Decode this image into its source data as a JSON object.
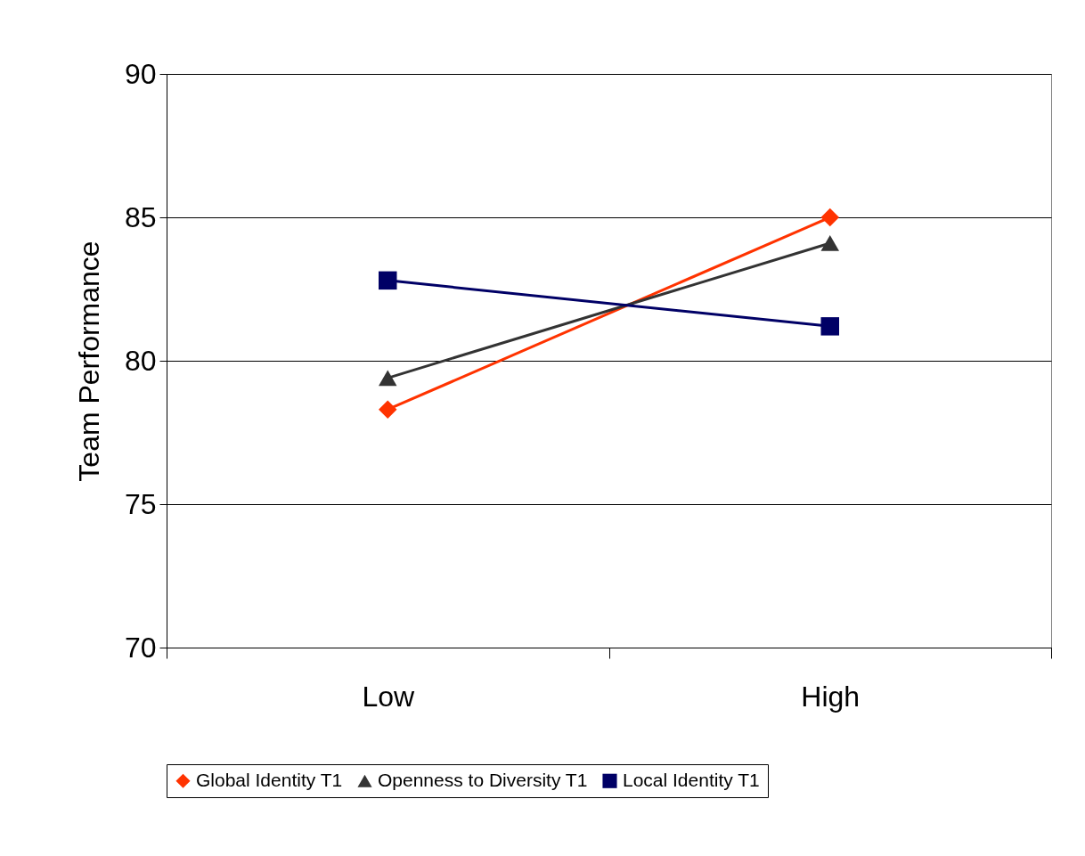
{
  "chart_data": {
    "type": "line",
    "ylabel": "Team Performance",
    "categories": [
      "Low",
      "High"
    ],
    "ylim": [
      70,
      90
    ],
    "yticks": [
      70,
      75,
      80,
      85,
      90
    ],
    "grid": "y",
    "legend": "bottom",
    "series": [
      {
        "name": "Global Identity T1",
        "color": "#ff3300",
        "marker": "diamond",
        "values": [
          78.3,
          85.0
        ]
      },
      {
        "name": "Openness to Diversity T1",
        "color": "#333333",
        "marker": "triangle",
        "values": [
          79.4,
          84.1
        ]
      },
      {
        "name": "Local Identity T1",
        "color": "#000066",
        "marker": "square",
        "values": [
          82.8,
          81.2
        ]
      }
    ]
  }
}
